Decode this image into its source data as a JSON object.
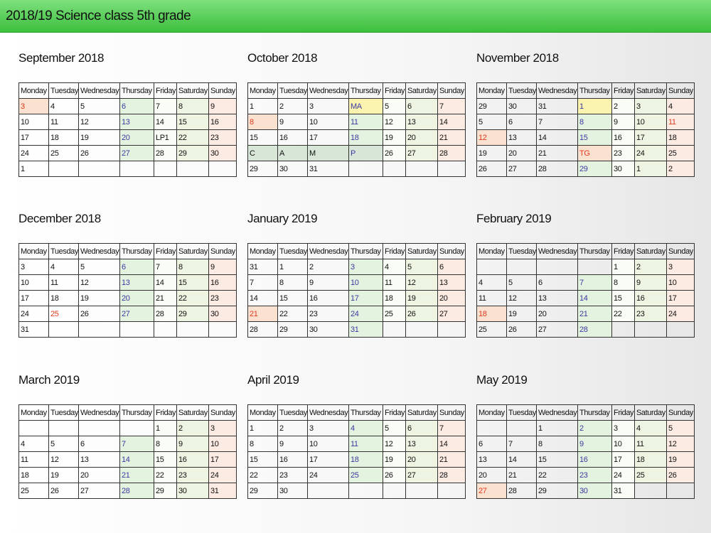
{
  "header": {
    "title": "2018/19 Science class 5th grade"
  },
  "weekdays": [
    "Monday",
    "Tuesday",
    "Wednesday",
    "Thursday",
    "Friday",
    "Saturday",
    "Sunday"
  ],
  "months": [
    {
      "title": "September 2018",
      "rows": [
        [
          {
            "text": 3,
            "color": "#e03a1e",
            "background": "#fbe1cf"
          },
          4,
          5,
          6,
          7,
          8,
          9
        ],
        [
          10,
          11,
          12,
          13,
          14,
          15,
          16
        ],
        [
          17,
          18,
          19,
          20,
          "LP1",
          22,
          23
        ],
        [
          24,
          25,
          26,
          27,
          28,
          29,
          30
        ],
        [
          1,
          null,
          null,
          null,
          null,
          null,
          null
        ]
      ]
    },
    {
      "title": "October 2018",
      "rows": [
        [
          1,
          2,
          3,
          {
            "text": "MA",
            "background": "#fbf3b0"
          },
          5,
          6,
          7
        ],
        [
          {
            "text": 8,
            "color": "#e03a1e",
            "background": "#fbe1cf"
          },
          9,
          10,
          11,
          12,
          13,
          14
        ],
        [
          15,
          16,
          17,
          18,
          19,
          20,
          21
        ],
        [
          {
            "text": "C",
            "background": "#d8e6d8"
          },
          {
            "text": "A",
            "background": "#d8e6d8"
          },
          {
            "text": "M",
            "background": "#d8e6d8"
          },
          {
            "text": "P",
            "background": "#d8e6d8"
          },
          26,
          27,
          28
        ],
        [
          29,
          30,
          31,
          null,
          null,
          null,
          null
        ]
      ]
    },
    {
      "title": "November 2018",
      "rows": [
        [
          29,
          30,
          31,
          {
            "text": 1,
            "background": "#fbf3b0"
          },
          2,
          3,
          4
        ],
        [
          5,
          6,
          7,
          8,
          9,
          10,
          {
            "text": 11,
            "color": "#e03a1e"
          }
        ],
        [
          {
            "text": 12,
            "color": "#e03a1e",
            "background": "#fbe1cf"
          },
          13,
          14,
          15,
          16,
          17,
          18
        ],
        [
          19,
          20,
          21,
          {
            "text": "TG",
            "color": "#e03a1e",
            "background": "#fbe1cf"
          },
          23,
          24,
          25
        ],
        [
          26,
          27,
          28,
          29,
          30,
          1,
          2
        ]
      ]
    },
    {
      "title": "December 2018",
      "rows": [
        [
          3,
          4,
          5,
          6,
          7,
          8,
          9
        ],
        [
          10,
          11,
          12,
          13,
          14,
          15,
          16
        ],
        [
          17,
          18,
          19,
          20,
          21,
          22,
          23
        ],
        [
          24,
          {
            "text": 25,
            "color": "#e03a1e"
          },
          26,
          27,
          28,
          29,
          30
        ],
        [
          31,
          null,
          null,
          null,
          null,
          null,
          null
        ]
      ]
    },
    {
      "title": "January 2019",
      "rows": [
        [
          31,
          1,
          2,
          3,
          4,
          5,
          6
        ],
        [
          7,
          8,
          9,
          10,
          11,
          12,
          13
        ],
        [
          14,
          15,
          16,
          17,
          18,
          19,
          20
        ],
        [
          {
            "text": 21,
            "color": "#e03a1e",
            "background": "#fbe1cf"
          },
          22,
          23,
          24,
          25,
          26,
          27
        ],
        [
          28,
          29,
          30,
          31,
          null,
          null,
          null
        ]
      ]
    },
    {
      "title": "February 2019",
      "rows": [
        [
          null,
          null,
          null,
          null,
          1,
          2,
          3
        ],
        [
          4,
          5,
          6,
          7,
          8,
          9,
          10
        ],
        [
          11,
          12,
          13,
          14,
          15,
          16,
          17
        ],
        [
          {
            "text": 18,
            "color": "#e03a1e",
            "background": "#fbe1cf"
          },
          19,
          20,
          21,
          22,
          23,
          24
        ],
        [
          25,
          26,
          27,
          28,
          null,
          null,
          null
        ]
      ]
    },
    {
      "title": "March 2019",
      "rows": [
        [
          null,
          null,
          null,
          null,
          1,
          2,
          3
        ],
        [
          4,
          5,
          6,
          7,
          8,
          9,
          10
        ],
        [
          11,
          12,
          13,
          14,
          15,
          16,
          17
        ],
        [
          18,
          19,
          20,
          21,
          22,
          23,
          24
        ],
        [
          25,
          26,
          27,
          28,
          29,
          30,
          31
        ]
      ]
    },
    {
      "title": "April 2019",
      "rows": [
        [
          1,
          2,
          3,
          4,
          5,
          6,
          7
        ],
        [
          8,
          9,
          10,
          11,
          12,
          13,
          14
        ],
        [
          15,
          16,
          17,
          18,
          19,
          20,
          21
        ],
        [
          22,
          23,
          24,
          25,
          26,
          27,
          28
        ],
        [
          29,
          30,
          null,
          null,
          null,
          null,
          null
        ]
      ]
    },
    {
      "title": "May 2019",
      "rows": [
        [
          null,
          null,
          1,
          2,
          3,
          4,
          5
        ],
        [
          6,
          7,
          8,
          9,
          10,
          11,
          12
        ],
        [
          13,
          14,
          15,
          16,
          17,
          18,
          19
        ],
        [
          20,
          21,
          22,
          23,
          24,
          25,
          26
        ],
        [
          {
            "text": 27,
            "color": "#e03a1e",
            "background": "#fbe1cf"
          },
          28,
          29,
          30,
          31,
          null,
          null
        ]
      ]
    }
  ]
}
